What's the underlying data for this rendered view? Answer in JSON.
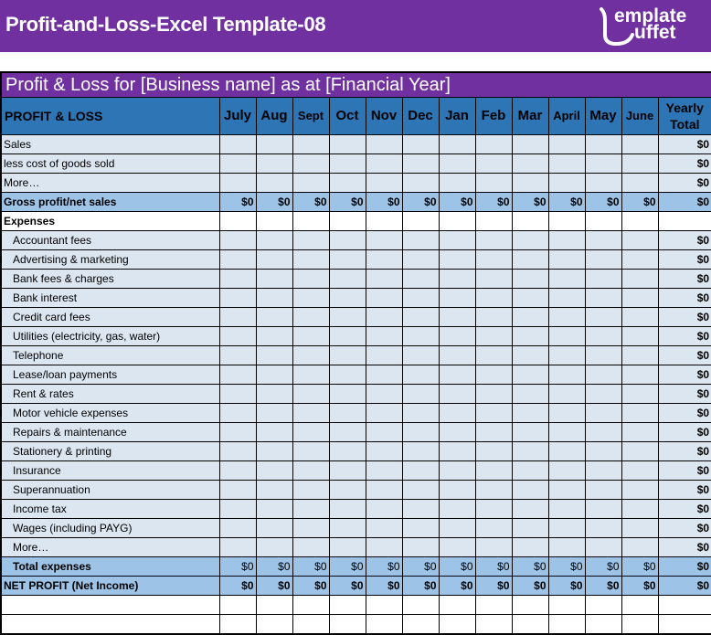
{
  "header": {
    "title": "Profit-and-Loss-Excel Template-08",
    "logo_line1": "emplate",
    "logo_line2": "uffet"
  },
  "sheet": {
    "title": "Profit & Loss for [Business name] as at [Financial Year]",
    "columns": {
      "label": "PROFIT & LOSS",
      "months": [
        "July",
        "Aug",
        "Sept",
        "Oct",
        "Nov",
        "Dec",
        "Jan",
        "Feb",
        "Mar",
        "April",
        "May",
        "June"
      ],
      "yearly_line1": "Yearly",
      "yearly_line2": "Total"
    },
    "rows": [
      {
        "label": "Sales",
        "type": "normal",
        "values": [],
        "total": "$0"
      },
      {
        "label": "less cost of goods sold",
        "type": "normal",
        "values": [],
        "total": "$0"
      },
      {
        "label": "More…",
        "type": "normal",
        "values": [],
        "total": "$0"
      },
      {
        "label": "Gross profit/net sales",
        "type": "hl",
        "values": [
          "$0",
          "$0",
          "$0",
          "$0",
          "$0",
          "$0",
          "$0",
          "$0",
          "$0",
          "$0",
          "$0",
          "$0"
        ],
        "total": "$0"
      },
      {
        "label": "Expenses",
        "type": "section",
        "values": [],
        "total": ""
      },
      {
        "label": "Accountant fees",
        "type": "normal",
        "indent": true,
        "values": [],
        "total": "$0"
      },
      {
        "label": "Advertising & marketing",
        "type": "normal",
        "indent": true,
        "values": [],
        "total": "$0"
      },
      {
        "label": "Bank fees & charges",
        "type": "normal",
        "indent": true,
        "values": [],
        "total": "$0"
      },
      {
        "label": "Bank interest",
        "type": "normal",
        "indent": true,
        "values": [],
        "total": "$0"
      },
      {
        "label": "Credit card fees",
        "type": "normal",
        "indent": true,
        "values": [],
        "total": "$0"
      },
      {
        "label": "Utilities (electricity, gas, water)",
        "type": "normal",
        "indent": true,
        "values": [],
        "total": "$0"
      },
      {
        "label": "Telephone",
        "type": "normal",
        "indent": true,
        "values": [],
        "total": "$0"
      },
      {
        "label": "Lease/loan payments",
        "type": "normal",
        "indent": true,
        "values": [],
        "total": "$0"
      },
      {
        "label": "Rent & rates",
        "type": "normal",
        "indent": true,
        "values": [],
        "total": "$0"
      },
      {
        "label": "Motor vehicle expenses",
        "type": "normal",
        "indent": true,
        "values": [],
        "total": "$0"
      },
      {
        "label": "Repairs & maintenance",
        "type": "normal",
        "indent": true,
        "values": [],
        "total": "$0"
      },
      {
        "label": "Stationery & printing",
        "type": "normal",
        "indent": true,
        "values": [],
        "total": "$0"
      },
      {
        "label": "Insurance",
        "type": "normal",
        "indent": true,
        "values": [],
        "total": "$0"
      },
      {
        "label": "Superannuation",
        "type": "normal",
        "indent": true,
        "values": [],
        "total": "$0"
      },
      {
        "label": "Income tax",
        "type": "normal",
        "indent": true,
        "values": [],
        "total": "$0"
      },
      {
        "label": "Wages (including PAYG)",
        "type": "normal",
        "indent": true,
        "values": [],
        "total": "$0"
      },
      {
        "label": "More…",
        "type": "normal",
        "indent": true,
        "values": [],
        "total": "$0"
      },
      {
        "label": "Total expenses",
        "type": "hl light",
        "indent": true,
        "values": [
          "$0",
          "$0",
          "$0",
          "$0",
          "$0",
          "$0",
          "$0",
          "$0",
          "$0",
          "$0",
          "$0",
          "$0"
        ],
        "total": "$0"
      },
      {
        "label": "NET PROFIT (Net Income)",
        "type": "hl",
        "values": [
          "$0",
          "$0",
          "$0",
          "$0",
          "$0",
          "$0",
          "$0",
          "$0",
          "$0",
          "$0",
          "$0",
          "$0"
        ],
        "total": "$0"
      },
      {
        "label": "",
        "type": "blank",
        "values": [],
        "total": ""
      },
      {
        "label": "",
        "type": "blank",
        "values": [],
        "total": ""
      }
    ]
  },
  "colors": {
    "banner": "#7030a0",
    "header_blue": "#2e75b6",
    "row_light": "#dce6f1",
    "row_highlight": "#9dc3e6"
  }
}
